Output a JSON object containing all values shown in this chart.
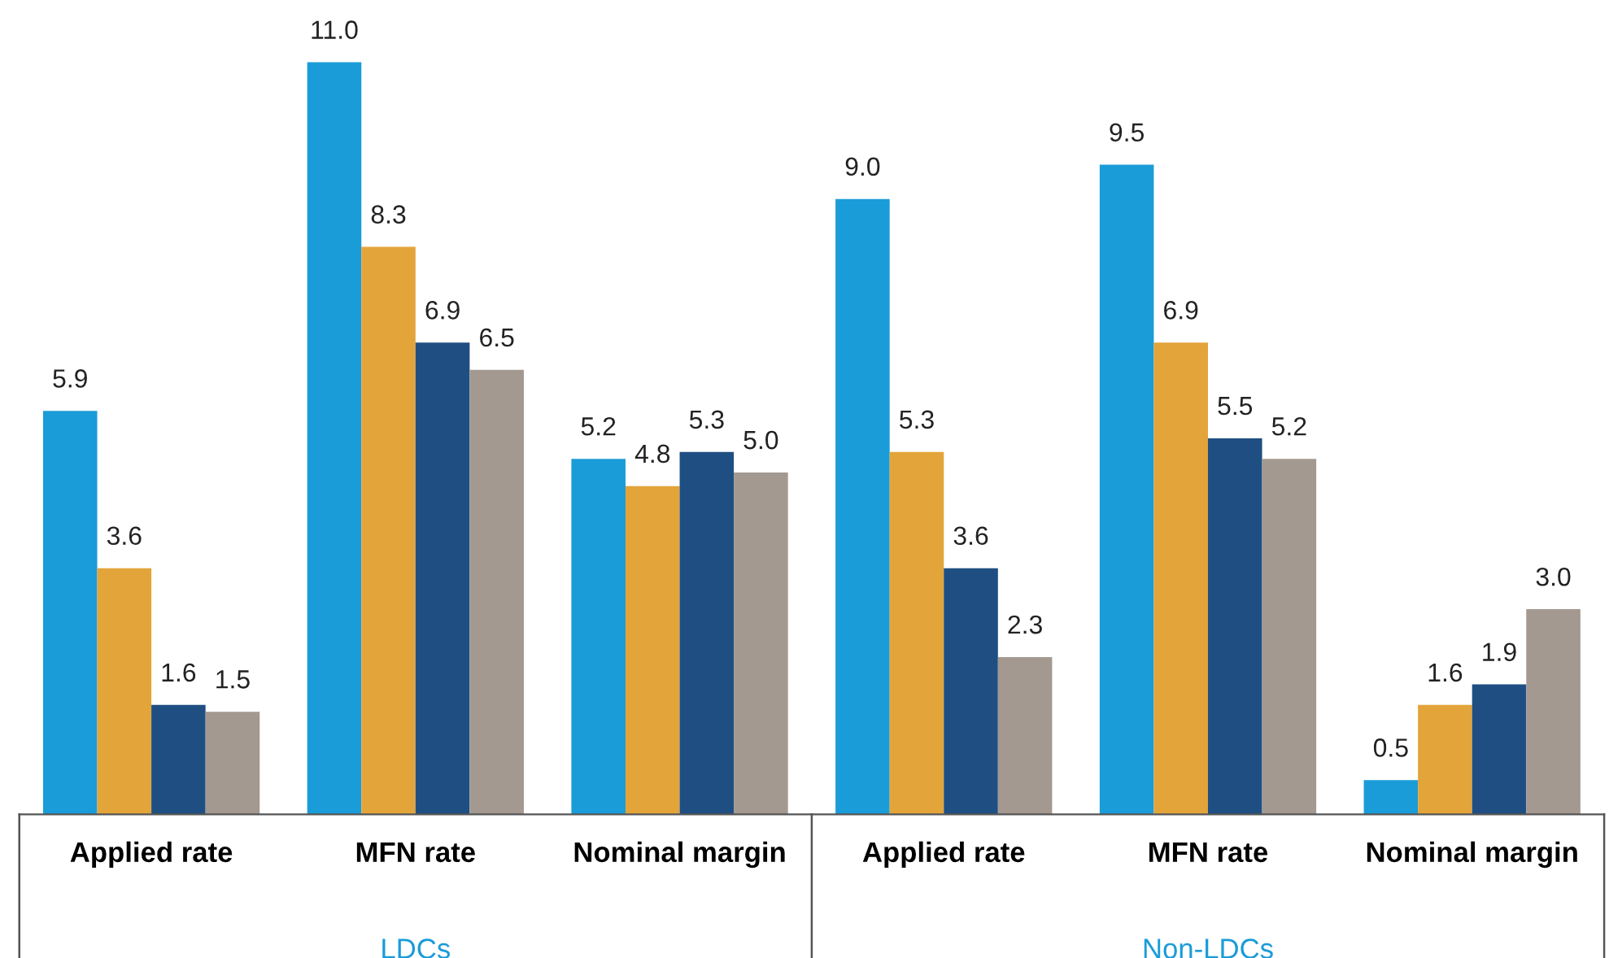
{
  "chart_data": {
    "type": "bar",
    "categories": [
      "Applied rate",
      "MFN rate",
      "Nominal margin",
      "Applied rate",
      "MFN rate",
      "Nominal margin"
    ],
    "series": [
      {
        "color": "#1a9cd8",
        "values": [
          5.9,
          11.0,
          5.2,
          9.0,
          9.5,
          0.5
        ],
        "value_labels": [
          "5.9",
          "11.0",
          "5.2",
          "9.0",
          "9.5",
          "0.5"
        ]
      },
      {
        "color": "#e3a43a",
        "values": [
          3.6,
          8.3,
          4.8,
          5.3,
          6.9,
          1.6
        ],
        "value_labels": [
          "3.6",
          "8.3",
          "4.8",
          "5.3",
          "6.9",
          "1.6"
        ]
      },
      {
        "color": "#1f4f82",
        "values": [
          1.6,
          6.9,
          5.3,
          3.6,
          5.5,
          1.9
        ],
        "value_labels": [
          "1.6",
          "6.9",
          "5.3",
          "3.6",
          "5.5",
          "1.9"
        ]
      },
      {
        "color": "#a39990",
        "values": [
          1.5,
          6.5,
          5.0,
          2.3,
          5.2,
          3.0
        ],
        "value_labels": [
          "1.5",
          "6.5",
          "5.0",
          "2.3",
          "5.2",
          "3.0"
        ]
      }
    ],
    "grid": false,
    "legend": false,
    "annotations": [
      "LDCs",
      "Non-LDCs"
    ]
  }
}
